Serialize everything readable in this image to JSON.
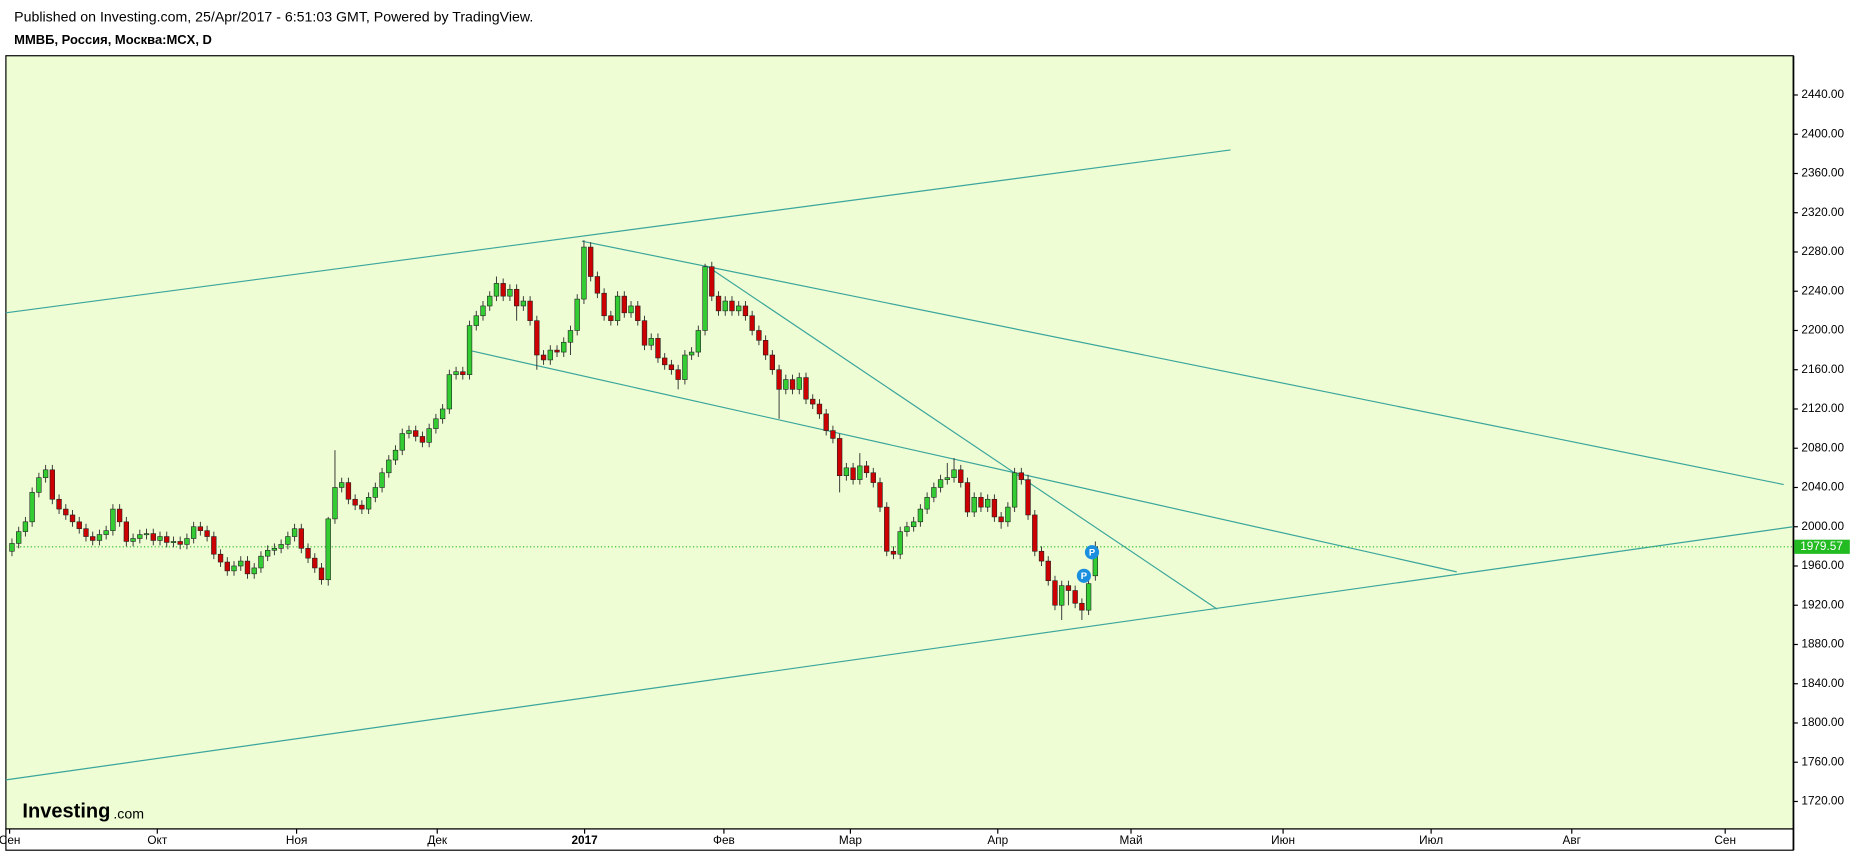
{
  "chart_data": {
    "type": "candlestick",
    "header": "Published on Investing.com, 25/Apr/2017 - 6:51:03 GMT, Powered by TradingView.",
    "title": "ММВБ, Россия, Москва:MCX, D",
    "logo": {
      "name": "Investing",
      "suffix": ".com"
    },
    "up_color": "#33cc33",
    "down_color": "#cc0000",
    "line_color": "#3aa59c",
    "last_color": "#22bb22",
    "xlim": [
      -0.9,
      264.7
    ],
    "ylim": [
      1692,
      2480
    ],
    "xticks": [
      {
        "value": -0.35,
        "label": "Сен"
      },
      {
        "value": 21.6,
        "label": "Окт"
      },
      {
        "value": 42.3,
        "label": "Ноя"
      },
      {
        "value": 63.2,
        "label": "Дек"
      },
      {
        "value": 85.1,
        "label": "2017"
      },
      {
        "value": 105.8,
        "label": "Фев"
      },
      {
        "value": 124.6,
        "label": "Мар"
      },
      {
        "value": 146.5,
        "label": "Апр"
      },
      {
        "value": 166.3,
        "label": "Май"
      },
      {
        "value": 188.9,
        "label": "Июн"
      },
      {
        "value": 210.9,
        "label": "Июл"
      },
      {
        "value": 231.8,
        "label": "Авг"
      },
      {
        "value": 254.6,
        "label": "Сен"
      }
    ],
    "yticks": [
      {
        "value": 1720,
        "label": "1720.00"
      },
      {
        "value": 1760,
        "label": "1760.00"
      },
      {
        "value": 1800,
        "label": "1800.00"
      },
      {
        "value": 1840,
        "label": "1840.00"
      },
      {
        "value": 1880,
        "label": "1880.00"
      },
      {
        "value": 1920,
        "label": "1920.00"
      },
      {
        "value": 1960,
        "label": "1960.00"
      },
      {
        "value": 2000,
        "label": "2000.00"
      },
      {
        "value": 2040,
        "label": "2040.00"
      },
      {
        "value": 2080,
        "label": "2080.00"
      },
      {
        "value": 2120,
        "label": "2120.00"
      },
      {
        "value": 2160,
        "label": "2160.00"
      },
      {
        "value": 2200,
        "label": "2200.00"
      },
      {
        "value": 2240,
        "label": "2240.00"
      },
      {
        "value": 2280,
        "label": "2280.00"
      },
      {
        "value": 2320,
        "label": "2320.00"
      },
      {
        "value": 2360,
        "label": "2360.00"
      },
      {
        "value": 2400,
        "label": "2400.00"
      },
      {
        "value": 2440,
        "label": "2440.00"
      }
    ],
    "last_price": 1979.57,
    "x": [
      0,
      1,
      2,
      3,
      4,
      5,
      6,
      7,
      8,
      9,
      10,
      11,
      12,
      13,
      14,
      15,
      16,
      17,
      18,
      19,
      20,
      21,
      22,
      23,
      24,
      25,
      26,
      27,
      28,
      29,
      30,
      31,
      32,
      33,
      34,
      35,
      36,
      37,
      38,
      39,
      40,
      41,
      42,
      43,
      44,
      45,
      46,
      47,
      48,
      49,
      50,
      51,
      52,
      53,
      54,
      55,
      56,
      57,
      58,
      59,
      60,
      61,
      62,
      63,
      64,
      65,
      66,
      67,
      68,
      69,
      70,
      71,
      72,
      73,
      74,
      75,
      76,
      77,
      78,
      79,
      80,
      81,
      82,
      83,
      84,
      85,
      86,
      87,
      88,
      89,
      90,
      91,
      92,
      93,
      94,
      95,
      96,
      97,
      98,
      99,
      100,
      101,
      102,
      103,
      104,
      105,
      106,
      107,
      108,
      109,
      110,
      111,
      112,
      113,
      114,
      115,
      116,
      117,
      118,
      119,
      120,
      121,
      122,
      123,
      124,
      125,
      126,
      127,
      128,
      129,
      130,
      131,
      132,
      133,
      134,
      135,
      136,
      137,
      138,
      139,
      140,
      141,
      142,
      143,
      144,
      145,
      146,
      147,
      148,
      149,
      150,
      151,
      152,
      153,
      154,
      155,
      156,
      157,
      158,
      159,
      160,
      161
    ],
    "open": [
      1975,
      1983,
      1995,
      2005,
      2035,
      2050,
      2058,
      2028,
      2018,
      2012,
      2005,
      1998,
      1990,
      1986,
      1992,
      1996,
      2018,
      2005,
      1985,
      1988,
      1992,
      1993,
      1986,
      1990,
      1984,
      1985,
      1982,
      1988,
      2000,
      1996,
      1990,
      1972,
      1964,
      1955,
      1960,
      1965,
      1952,
      1958,
      1970,
      1976,
      1978,
      1982,
      1990,
      1998,
      1978,
      1968,
      1958,
      1946,
      2008,
      2040,
      2045,
      2028,
      2022,
      2018,
      2030,
      2040,
      2055,
      2068,
      2078,
      2095,
      2098,
      2092,
      2086,
      2100,
      2110,
      2120,
      2155,
      2158,
      2155,
      2205,
      2215,
      2225,
      2235,
      2248,
      2235,
      2242,
      2225,
      2230,
      2210,
      2175,
      2170,
      2180,
      2178,
      2188,
      2200,
      2232,
      2285,
      2255,
      2238,
      2215,
      2210,
      2235,
      2218,
      2225,
      2210,
      2185,
      2192,
      2172,
      2165,
      2160,
      2150,
      2175,
      2178,
      2200,
      2265,
      2235,
      2220,
      2230,
      2220,
      2225,
      2215,
      2200,
      2190,
      2175,
      2160,
      2140,
      2150,
      2140,
      2152,
      2130,
      2125,
      2115,
      2098,
      2090,
      2052,
      2060,
      2048,
      2062,
      2055,
      2045,
      2020,
      1975,
      1972,
      1995,
      2000,
      2005,
      2018,
      2030,
      2040,
      2048,
      2050,
      2058,
      2045,
      2015,
      2030,
      2020,
      2028,
      2010,
      2005,
      2020,
      2055,
      2048,
      2012,
      1975,
      1965,
      1945,
      1920,
      1940,
      1935,
      1922,
      1915,
      1950
    ],
    "high": [
      1988,
      2000,
      2010,
      2040,
      2055,
      2063,
      2063,
      2033,
      2023,
      2017,
      2010,
      2003,
      1995,
      1997,
      2001,
      2023,
      2023,
      2010,
      1993,
      1997,
      1998,
      1998,
      1995,
      1995,
      1990,
      1990,
      1993,
      2005,
      2005,
      2001,
      1995,
      1977,
      1969,
      1965,
      1970,
      1970,
      1963,
      1975,
      1981,
      1983,
      1987,
      1995,
      2003,
      2003,
      1983,
      1973,
      1963,
      2010,
      2078,
      2050,
      2050,
      2033,
      2027,
      2035,
      2045,
      2060,
      2073,
      2083,
      2100,
      2103,
      2103,
      2097,
      2105,
      2115,
      2125,
      2160,
      2163,
      2163,
      2210,
      2220,
      2230,
      2240,
      2255,
      2253,
      2247,
      2247,
      2235,
      2235,
      2215,
      2180,
      2185,
      2185,
      2193,
      2205,
      2237,
      2292,
      2290,
      2260,
      2243,
      2220,
      2240,
      2240,
      2230,
      2230,
      2215,
      2197,
      2197,
      2177,
      2170,
      2165,
      2180,
      2183,
      2205,
      2268,
      2270,
      2240,
      2235,
      2235,
      2230,
      2230,
      2220,
      2205,
      2195,
      2180,
      2165,
      2155,
      2155,
      2157,
      2157,
      2135,
      2130,
      2120,
      2103,
      2095,
      2065,
      2065,
      2075,
      2067,
      2060,
      2050,
      2025,
      1980,
      2000,
      2005,
      2010,
      2023,
      2035,
      2045,
      2053,
      2065,
      2070,
      2063,
      2050,
      2035,
      2035,
      2033,
      2033,
      2015,
      2025,
      2060,
      2060,
      2053,
      2017,
      1980,
      1970,
      1950,
      1945,
      1945,
      1940,
      1927,
      1947,
      1985
    ],
    "low": [
      1970,
      1978,
      1990,
      2000,
      2030,
      2045,
      2023,
      2013,
      2007,
      2000,
      1993,
      1985,
      1981,
      1981,
      1987,
      1991,
      2000,
      1980,
      1980,
      1983,
      1987,
      1981,
      1981,
      1979,
      1979,
      1977,
      1977,
      1983,
      1991,
      1985,
      1967,
      1959,
      1950,
      1950,
      1955,
      1947,
      1947,
      1953,
      1965,
      1971,
      1973,
      1977,
      1985,
      1973,
      1963,
      1953,
      1941,
      1940,
      2003,
      2035,
      2023,
      2017,
      2013,
      2013,
      2025,
      2035,
      2050,
      2063,
      2073,
      2090,
      2087,
      2081,
      2081,
      2095,
      2105,
      2115,
      2150,
      2150,
      2150,
      2200,
      2210,
      2220,
      2230,
      2230,
      2230,
      2210,
      2220,
      2205,
      2160,
      2165,
      2165,
      2173,
      2173,
      2175,
      2195,
      2227,
      2250,
      2233,
      2210,
      2205,
      2205,
      2213,
      2213,
      2205,
      2180,
      2180,
      2167,
      2160,
      2155,
      2140,
      2145,
      2170,
      2173,
      2195,
      2230,
      2215,
      2215,
      2215,
      2215,
      2210,
      2195,
      2185,
      2170,
      2155,
      2110,
      2135,
      2135,
      2135,
      2125,
      2120,
      2110,
      2093,
      2085,
      2035,
      2047,
      2043,
      2043,
      2050,
      2040,
      2015,
      1970,
      1967,
      1967,
      1990,
      1995,
      2000,
      2013,
      2025,
      2035,
      2043,
      2045,
      2040,
      2010,
      2010,
      2015,
      2015,
      2005,
      1998,
      2000,
      2015,
      2043,
      2007,
      1970,
      1960,
      1940,
      1915,
      1905,
      1920,
      1917,
      1905,
      1910,
      1945
    ],
    "close": [
      1983,
      1995,
      2005,
      2035,
      2050,
      2058,
      2028,
      2018,
      2012,
      2005,
      1998,
      1990,
      1986,
      1992,
      1996,
      2018,
      2005,
      1985,
      1988,
      1992,
      1993,
      1986,
      1990,
      1984,
      1985,
      1982,
      1988,
      2000,
      1996,
      1990,
      1972,
      1964,
      1955,
      1960,
      1965,
      1952,
      1958,
      1970,
      1976,
      1978,
      1982,
      1990,
      1998,
      1978,
      1968,
      1958,
      1946,
      2008,
      2040,
      2045,
      2028,
      2022,
      2018,
      2030,
      2040,
      2055,
      2068,
      2078,
      2095,
      2098,
      2092,
      2086,
      2100,
      2110,
      2120,
      2155,
      2158,
      2155,
      2205,
      2215,
      2225,
      2235,
      2248,
      2235,
      2242,
      2225,
      2230,
      2210,
      2175,
      2170,
      2180,
      2178,
      2188,
      2200,
      2232,
      2285,
      2255,
      2238,
      2215,
      2210,
      2235,
      2218,
      2225,
      2210,
      2185,
      2192,
      2172,
      2165,
      2160,
      2150,
      2175,
      2178,
      2200,
      2265,
      2235,
      2220,
      2230,
      2220,
      2225,
      2215,
      2200,
      2190,
      2175,
      2160,
      2140,
      2150,
      2140,
      2152,
      2130,
      2125,
      2115,
      2098,
      2090,
      2052,
      2060,
      2048,
      2062,
      2055,
      2045,
      2020,
      1975,
      1972,
      1995,
      2000,
      2005,
      2018,
      2030,
      2040,
      2048,
      2050,
      2058,
      2045,
      2015,
      2030,
      2020,
      2028,
      2010,
      2005,
      2020,
      2055,
      2048,
      2012,
      1975,
      1965,
      1945,
      1920,
      1940,
      1935,
      1922,
      1915,
      1942,
      1979.57
    ],
    "lines": [
      {
        "x": [
          -0.9,
          181.1
        ],
        "y": [
          2218,
          2384
        ]
      },
      {
        "x": [
          84.7,
          263.3
        ],
        "y": [
          2291,
          2043
        ]
      },
      {
        "x": [
          103.2,
          179.1
        ],
        "y": [
          2266,
          1916
        ]
      },
      {
        "x": [
          68.4,
          214.7
        ],
        "y": [
          2179,
          1954
        ]
      },
      {
        "x": [
          -0.9,
          264.7
        ],
        "y": [
          1742,
          2000
        ]
      }
    ],
    "annotations": [
      {
        "text": "P",
        "x": 159.3,
        "y": 1950
      },
      {
        "text": "P",
        "x": 160.5,
        "y": 1974
      }
    ]
  }
}
